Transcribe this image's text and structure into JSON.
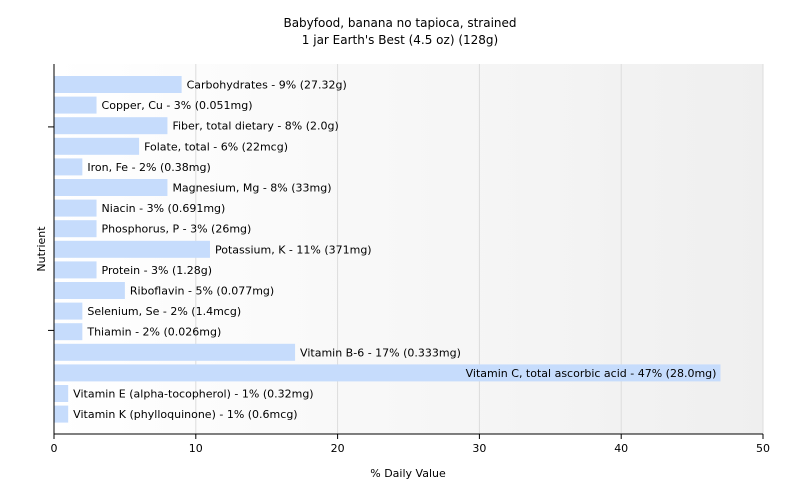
{
  "chart_data": {
    "type": "bar",
    "orientation": "horizontal",
    "title": "Babyfood, banana no tapioca, strained",
    "subtitle": "1 jar Earth's Best (4.5 oz) (128g)",
    "xlabel": "% Daily Value",
    "ylabel": "Nutrient",
    "xlim": [
      0,
      50
    ],
    "xticks": [
      0,
      10,
      20,
      30,
      40,
      50
    ],
    "grid": true,
    "bar_color": "#c6dcfc",
    "categories": [
      "Carbohydrates",
      "Copper, Cu",
      "Fiber, total dietary",
      "Folate, total",
      "Iron, Fe",
      "Magnesium, Mg",
      "Niacin",
      "Phosphorus, P",
      "Potassium, K",
      "Protein",
      "Riboflavin",
      "Selenium, Se",
      "Thiamin",
      "Vitamin B-6",
      "Vitamin C, total ascorbic acid",
      "Vitamin E (alpha-tocopherol)",
      "Vitamin K (phylloquinone)"
    ],
    "values": [
      9,
      3,
      8,
      6,
      2,
      8,
      3,
      3,
      11,
      3,
      5,
      2,
      2,
      17,
      47,
      1,
      1
    ],
    "labels": [
      "Carbohydrates - 9% (27.32g)",
      "Copper, Cu - 3% (0.051mg)",
      "Fiber, total dietary - 8% (2.0g)",
      "Folate, total - 6% (22mcg)",
      "Iron, Fe - 2% (0.38mg)",
      "Magnesium, Mg - 8% (33mg)",
      "Niacin - 3% (0.691mg)",
      "Phosphorus, P - 3% (26mg)",
      "Potassium, K - 11% (371mg)",
      "Protein - 3% (1.28g)",
      "Riboflavin - 5% (0.077mg)",
      "Selenium, Se - 2% (1.4mcg)",
      "Thiamin - 2% (0.026mg)",
      "Vitamin B-6 - 17% (0.333mg)",
      "Vitamin C, total ascorbic acid - 47% (28.0mg)",
      "Vitamin E (alpha-tocopherol) - 1% (0.32mg)",
      "Vitamin K (phylloquinone) - 1% (0.6mcg)"
    ]
  }
}
